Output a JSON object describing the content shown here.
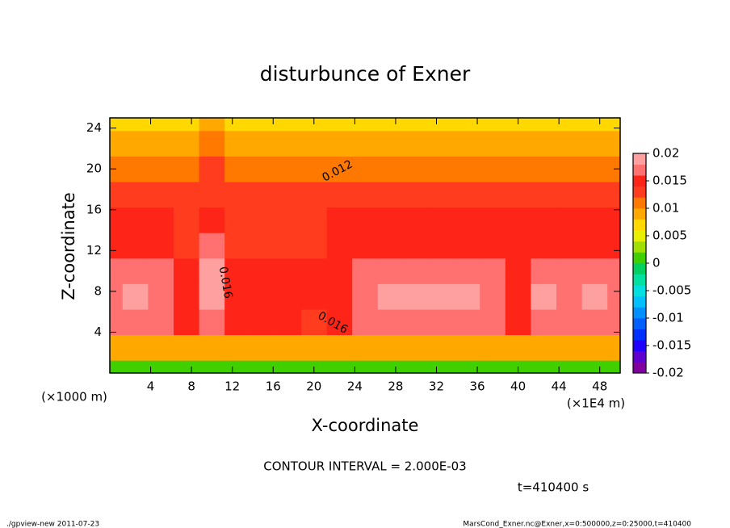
{
  "chart_data": {
    "type": "contour",
    "title": "disturbunce of Exner",
    "xlabel": "X-coordinate",
    "ylabel": "Z-coordinate",
    "x_unit_label": "(×1E4 m)",
    "y_unit_label": "(×1000 m)",
    "xlim": [
      0,
      50
    ],
    "ylim": [
      0,
      25
    ],
    "xticks": [
      4,
      8,
      12,
      16,
      20,
      24,
      28,
      32,
      36,
      40,
      44,
      48
    ],
    "yticks": [
      4,
      8,
      12,
      16,
      20,
      24
    ],
    "x": [
      0,
      2.5,
      5,
      7.5,
      10,
      12.5,
      15,
      17.5,
      20,
      22.5,
      25,
      27.5,
      30,
      32.5,
      35,
      37.5,
      40,
      42.5,
      45,
      47.5,
      50
    ],
    "y": [
      0,
      2.5,
      5,
      7.5,
      10,
      12.5,
      15,
      17.5,
      20,
      22.5,
      25
    ],
    "z": [
      [
        0.001,
        0.001,
        0.001,
        0.001,
        0.001,
        0.001,
        0.001,
        0.001,
        0.001,
        0.001,
        0.001,
        0.001,
        0.001,
        0.001,
        0.001,
        0.001,
        0.001,
        0.001,
        0.001,
        0.001,
        0.001
      ],
      [
        0.009,
        0.009,
        0.009,
        0.009,
        0.009,
        0.009,
        0.009,
        0.009,
        0.009,
        0.009,
        0.009,
        0.009,
        0.009,
        0.009,
        0.009,
        0.009,
        0.009,
        0.009,
        0.009,
        0.009,
        0.009
      ],
      [
        0.0165,
        0.0165,
        0.0165,
        0.015,
        0.0175,
        0.0145,
        0.014,
        0.014,
        0.0135,
        0.015,
        0.0165,
        0.0165,
        0.0165,
        0.0165,
        0.0165,
        0.0165,
        0.015,
        0.0165,
        0.0165,
        0.0165,
        0.0165
      ],
      [
        0.0175,
        0.018,
        0.0175,
        0.0145,
        0.0185,
        0.0145,
        0.014,
        0.014,
        0.014,
        0.0145,
        0.0175,
        0.0185,
        0.0185,
        0.0185,
        0.0185,
        0.0175,
        0.0155,
        0.018,
        0.0165,
        0.018,
        0.017
      ],
      [
        0.0165,
        0.017,
        0.0165,
        0.0145,
        0.018,
        0.0145,
        0.014,
        0.014,
        0.014,
        0.0145,
        0.017,
        0.0175,
        0.0175,
        0.0175,
        0.0175,
        0.017,
        0.0155,
        0.0165,
        0.0165,
        0.0165,
        0.0165
      ],
      [
        0.0155,
        0.0155,
        0.015,
        0.0135,
        0.016,
        0.0135,
        0.0135,
        0.0135,
        0.0135,
        0.0145,
        0.0155,
        0.0155,
        0.0155,
        0.0155,
        0.0155,
        0.0155,
        0.0145,
        0.0145,
        0.015,
        0.015,
        0.015
      ],
      [
        0.0145,
        0.0145,
        0.0145,
        0.013,
        0.015,
        0.0135,
        0.0135,
        0.0135,
        0.0135,
        0.0145,
        0.0145,
        0.0145,
        0.0145,
        0.0145,
        0.0145,
        0.0145,
        0.014,
        0.0145,
        0.0145,
        0.0145,
        0.0145
      ],
      [
        0.0125,
        0.0125,
        0.0125,
        0.0125,
        0.013,
        0.0125,
        0.0125,
        0.0125,
        0.0125,
        0.0125,
        0.0125,
        0.0125,
        0.0125,
        0.0125,
        0.0125,
        0.0125,
        0.0125,
        0.0125,
        0.0125,
        0.0125,
        0.0125
      ],
      [
        0.0115,
        0.0115,
        0.0115,
        0.0115,
        0.0125,
        0.0105,
        0.0105,
        0.0105,
        0.0105,
        0.0115,
        0.0115,
        0.0115,
        0.0115,
        0.0115,
        0.0115,
        0.0115,
        0.0115,
        0.0115,
        0.0115,
        0.0115,
        0.0115
      ],
      [
        0.0095,
        0.0095,
        0.0095,
        0.0095,
        0.0105,
        0.0085,
        0.008,
        0.008,
        0.0085,
        0.0095,
        0.0095,
        0.0095,
        0.0095,
        0.0095,
        0.0095,
        0.0095,
        0.0095,
        0.0095,
        0.0095,
        0.0095,
        0.0095
      ],
      [
        0.0075,
        0.0075,
        0.0075,
        0.006,
        0.0085,
        0.0065,
        0.006,
        0.006,
        0.0065,
        0.0075,
        0.0075,
        0.0075,
        0.0075,
        0.0075,
        0.0075,
        0.0075,
        0.0075,
        0.0075,
        0.0075,
        0.0075,
        0.0075
      ]
    ],
    "contour_labels": [
      "0.012",
      "0.016",
      "0.016"
    ],
    "colorbar": {
      "levels": [
        -0.02,
        -0.018,
        -0.016,
        -0.014,
        -0.012,
        -0.01,
        -0.008,
        -0.006,
        -0.004,
        -0.002,
        0,
        0.002,
        0.004,
        0.006,
        0.008,
        0.01,
        0.012,
        0.014,
        0.016,
        0.018,
        0.02
      ],
      "colors": [
        "#8000a0",
        "#6000d0",
        "#2000ff",
        "#0030ff",
        "#0060ff",
        "#0090ff",
        "#00c0ff",
        "#00e0e0",
        "#00e0a0",
        "#00d060",
        "#40d000",
        "#a0e000",
        "#e8f000",
        "#ffd800",
        "#ffa800",
        "#ff7800",
        "#ff3c1e",
        "#ff2418",
        "#ff7070",
        "#ffa0a0"
      ],
      "lim": [
        -0.02,
        0.02
      ],
      "ticks": [
        -0.02,
        -0.015,
        -0.01,
        -0.005,
        0,
        0.005,
        0.01,
        0.015,
        0.02
      ]
    },
    "annotations": [
      "CONTOUR INTERVAL = 2.000E-03",
      "t=410400 s"
    ],
    "footer_left": "./gpview-new  2011-07-23",
    "footer_right": "MarsCond_Exner.nc@Exner,x=0:500000,z=0:25000,t=410400"
  }
}
